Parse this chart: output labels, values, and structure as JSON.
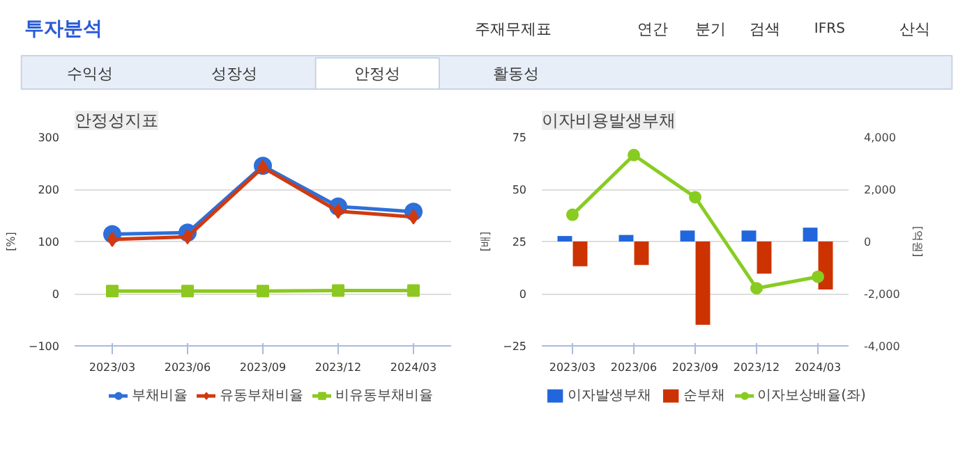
{
  "chart_data": [
    {
      "type": "other",
      "title": "투자분석",
      "annotations": [
        "주재무제표",
        "연간",
        "분기",
        "검색",
        "IFRS",
        "산식",
        "수익성",
        "성장성",
        "안정성",
        "활동성"
      ]
    },
    {
      "type": "line",
      "title": "안정성지표",
      "ylabel": "[%]",
      "categories": [
        "2023/03",
        "2023/06",
        "2023/09",
        "2023/12",
        "2024/03"
      ],
      "ylim": [
        -100,
        300
      ],
      "yticks": [
        -100,
        0,
        100,
        200,
        300
      ],
      "grid": "y",
      "legend": "bottom",
      "line_style": "solid",
      "series": [
        {
          "name": "부채비율",
          "color": "#2f6fd8",
          "marker": "circle",
          "values": [
            114,
            117,
            245,
            167,
            157
          ]
        },
        {
          "name": "유동부채비율",
          "color": "#d03a10",
          "marker": "diamond",
          "values": [
            104,
            109,
            242,
            158,
            147
          ]
        },
        {
          "name": "비유동부채비율",
          "color": "#8cc820",
          "marker": "square",
          "values": [
            5,
            5,
            5,
            6,
            6
          ]
        }
      ]
    },
    {
      "type": "bar",
      "title": "이자비용발생부채",
      "ylabel": "[배]",
      "y2label": "[억원]",
      "categories": [
        "2023/03",
        "2023/06",
        "2023/09",
        "2023/12",
        "2024/03"
      ],
      "ylim": [
        -25,
        75
      ],
      "yticks": [
        -25,
        0,
        25,
        50,
        75
      ],
      "y2lim": [
        -4000,
        4000
      ],
      "y2ticks": [
        {
          "value": -4000,
          "label": "-4,000"
        },
        {
          "value": -2000,
          "label": "-2,000"
        },
        0,
        {
          "value": 2000,
          "label": "2,000"
        },
        {
          "value": 4000,
          "label": "4,000"
        }
      ],
      "grid": "y",
      "legend": "bottom",
      "series": [
        {
          "name": "이자발생부채",
          "color": "#2266dd",
          "axis": "y2",
          "values": [
            210,
            250,
            420,
            420,
            530
          ]
        },
        {
          "name": "순부채",
          "color": "#cc3300",
          "axis": "y2",
          "values": [
            -950,
            -900,
            -3190,
            -1230,
            -1840
          ]
        },
        {
          "name": "이자보상배율(좌)",
          "type": "line",
          "color": "#88cc22",
          "marker": "circle",
          "axis": "y",
          "values": [
            37.8,
            66.4,
            46.2,
            2.6,
            8.1
          ]
        }
      ]
    }
  ]
}
